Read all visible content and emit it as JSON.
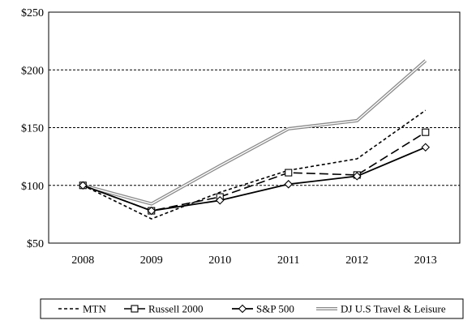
{
  "chart_data": {
    "type": "line",
    "title": "",
    "xlabel": "",
    "ylabel": "",
    "categories": [
      "2008",
      "2009",
      "2010",
      "2011",
      "2012",
      "2013"
    ],
    "ylim": [
      50,
      250
    ],
    "yticks": [
      50,
      100,
      150,
      200,
      250
    ],
    "ytick_labels": [
      "$50",
      "$100",
      "$150",
      "$200",
      "$250"
    ],
    "grid": "horizontal dashed",
    "legend_position": "bottom",
    "series": [
      {
        "name": "MTN",
        "values": [
          100,
          71,
          94,
          113,
          123,
          165
        ],
        "style": "short-dash",
        "marker": "none",
        "color": "#000000"
      },
      {
        "name": "Russell 2000",
        "values": [
          100,
          78,
          90,
          111,
          109,
          146
        ],
        "style": "long-dash",
        "marker": "square",
        "color": "#000000"
      },
      {
        "name": "S&P 500",
        "values": [
          100,
          78,
          87,
          101,
          108,
          133
        ],
        "style": "solid",
        "marker": "diamond",
        "color": "#000000"
      },
      {
        "name": "DJ U.S Travel & Leisure",
        "values": [
          100,
          84,
          117,
          149,
          156,
          208
        ],
        "style": "double-gray",
        "marker": "none",
        "color": "#808080"
      }
    ]
  }
}
